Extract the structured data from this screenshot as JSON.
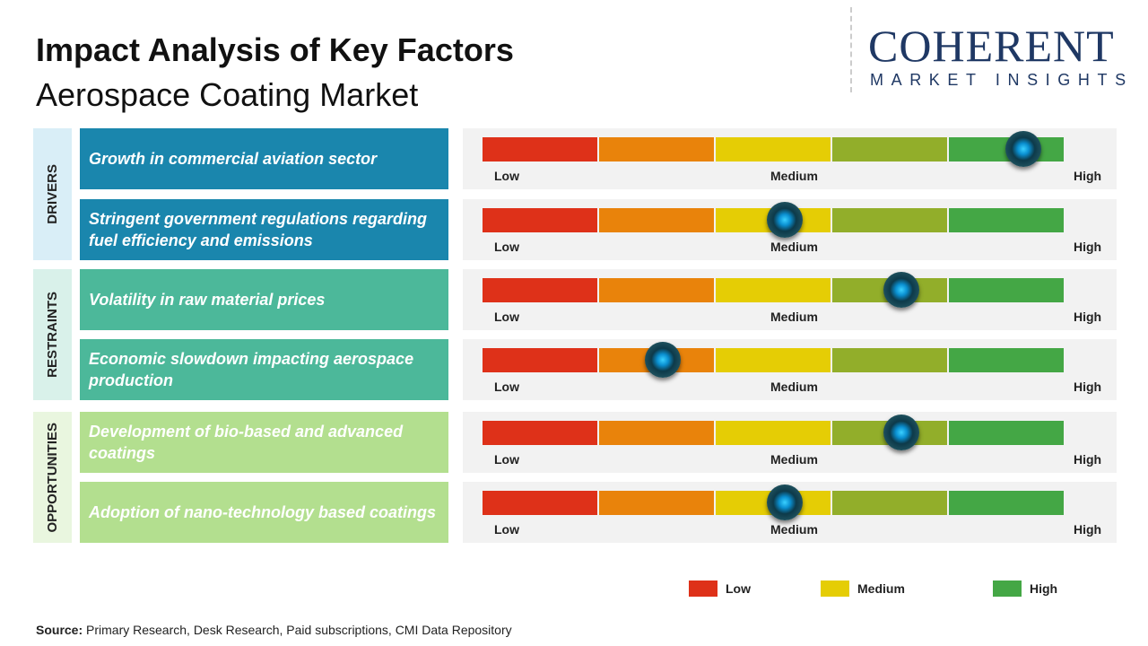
{
  "header": {
    "title": "Impact Analysis of Key Factors",
    "subtitle": "Aerospace Coating Market"
  },
  "logo": {
    "line1": "COHERENT",
    "line2": "MARKET INSIGHTS"
  },
  "chart_data": {
    "type": "table",
    "scale_labels": [
      "Low",
      "Medium",
      "High"
    ],
    "scale_colors": [
      "#de3119",
      "#e9830b",
      "#e5cd05",
      "#92ae2a",
      "#44a745"
    ],
    "groups": [
      {
        "name": "DRIVERS",
        "color": "#1a86ad",
        "label_bg": "#d9eef7"
      },
      {
        "name": "RESTRAINTS",
        "color": "#4cb89a",
        "label_bg": "#d9f1ea"
      },
      {
        "name": "OPPORTUNITIES",
        "color": "#b3df8f",
        "label_bg": "#e9f6df"
      }
    ],
    "factors": [
      {
        "group": 0,
        "label": "Growth in commercial aviation sector",
        "impact": 0.93
      },
      {
        "group": 0,
        "label": "Stringent government regulations regarding fuel efficiency and emissions",
        "impact": 0.52
      },
      {
        "group": 1,
        "label": "Volatility in raw material prices",
        "impact": 0.72
      },
      {
        "group": 1,
        "label": "Economic slowdown impacting aerospace production",
        "impact": 0.31
      },
      {
        "group": 2,
        "label": "Development of bio-based and advanced coatings",
        "impact": 0.72
      },
      {
        "group": 2,
        "label": "Adoption of nano-technology based coatings",
        "impact": 0.52
      }
    ],
    "legend": [
      {
        "label": "Low",
        "color": "#de3119"
      },
      {
        "label": "Medium",
        "color": "#e5cd05"
      },
      {
        "label": "High",
        "color": "#44a745"
      }
    ]
  },
  "footer": {
    "source_label": "Source:",
    "source_text": " Primary Research, Desk Research, Paid subscriptions, CMI Data Repository"
  }
}
